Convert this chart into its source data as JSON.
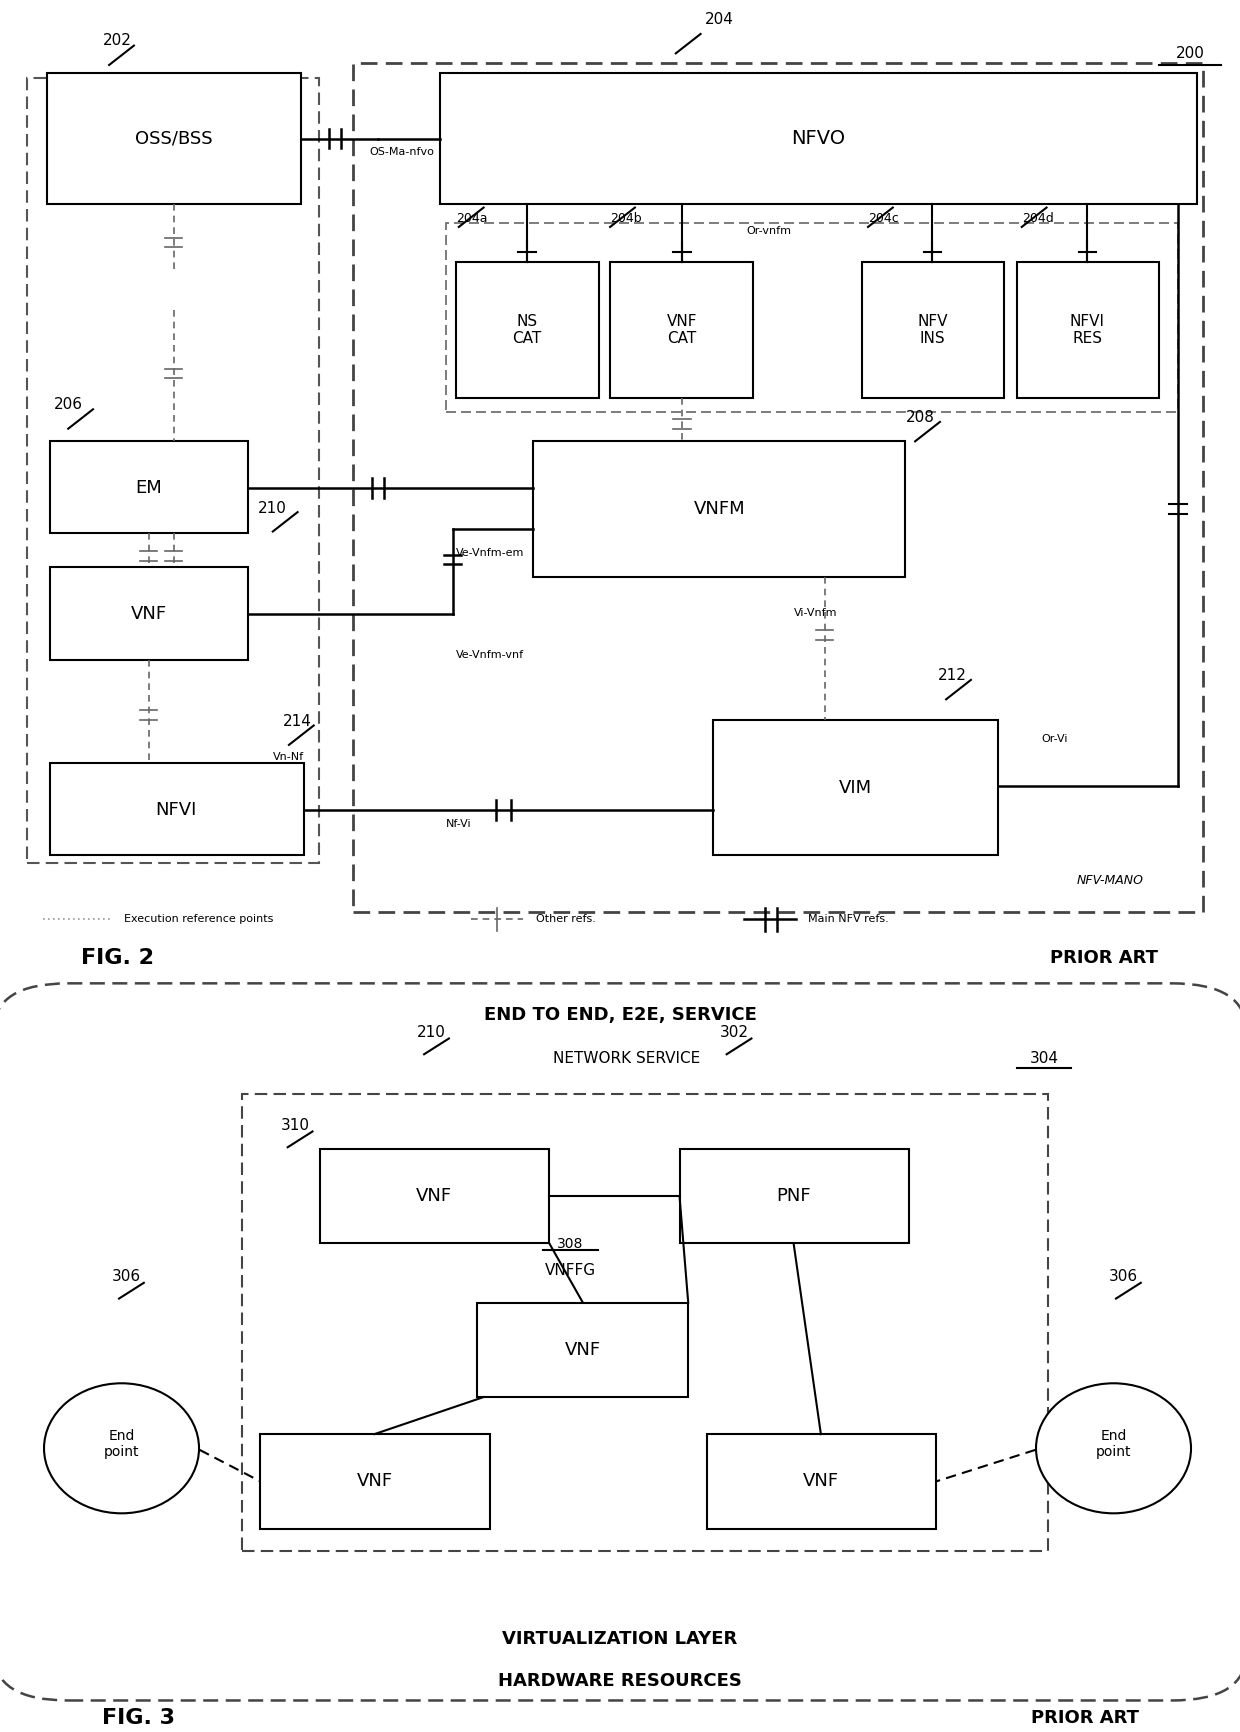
{
  "bg_color": "#ffffff",
  "fig2": {
    "oss_bss": "OSS/BSS",
    "nfvo": "NFVO",
    "ns_cat": "NS\nCAT",
    "vnf_cat": "VNF\nCAT",
    "nfv_ins": "NFV\nINS",
    "nfvi_res": "NFVI\nRES",
    "em": "EM",
    "vnf": "VNF",
    "nfvi": "NFVI",
    "vnfm": "VNFM",
    "vim": "VIM",
    "label_200": "200",
    "label_202": "202",
    "label_204": "204",
    "label_204a": "204a",
    "label_204b": "204b",
    "label_204c": "204c",
    "label_204d": "204d",
    "label_206": "206",
    "label_208": "208",
    "label_210": "210",
    "label_212": "212",
    "label_214": "214",
    "os_ma_nfvo": "OS-Ma-nfvo",
    "or_vnfm": "Or-vnfm",
    "ve_vnfm_em": "Ve-Vnfm-em",
    "ve_vnfm_vnf": "Ve-Vnfm-vnf",
    "vi_vnfm": "Vi-Vnfm",
    "vn_nf": "Vn-Nf",
    "nf_vi": "Nf-Vi",
    "or_vi": "Or-Vi",
    "nfv_mano": "NFV-MANO",
    "legend_exec": "Execution reference points",
    "legend_other": "Other refs.",
    "legend_main": "Main NFV refs.",
    "fig_label": "FIG. 2",
    "prior_art": "PRIOR ART"
  },
  "fig3": {
    "e2e_label": "END TO END, E2E, SERVICE",
    "ns_label": "NETWORK SERVICE",
    "vnffg_label": "VNFFG",
    "virt_label": "VIRTUALIZATION LAYER",
    "hw_label": "HARDWARE RESOURCES",
    "vnf": "VNF",
    "pnf": "PNF",
    "end_point": "End\npoint",
    "label_210": "210",
    "label_302": "302",
    "label_304": "304",
    "label_306": "306",
    "label_308": "308",
    "label_310": "310",
    "fig_label": "FIG. 3",
    "prior_art": "PRIOR ART"
  }
}
